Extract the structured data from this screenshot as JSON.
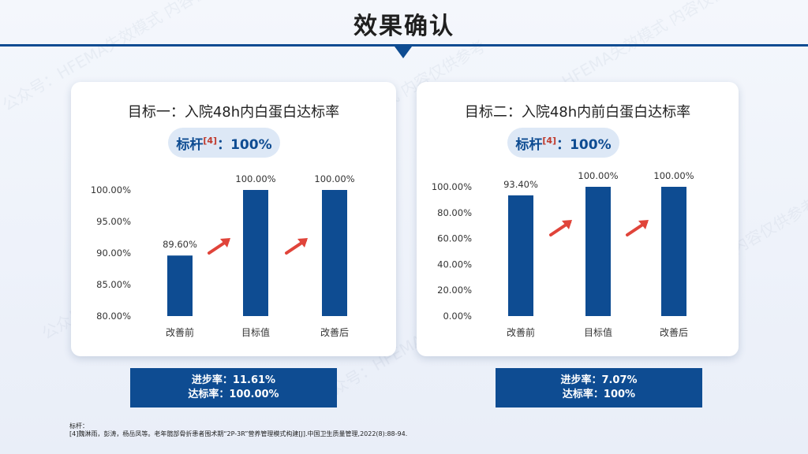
{
  "title": "效果确认",
  "watermark": "公众号：HFEMA失效模式 内容仅供参考",
  "cards": [
    {
      "title": "目标一：入院48h内白蛋白达标率",
      "benchmark_label": "标杆",
      "benchmark_ref": "[4]",
      "benchmark_value": "：100%",
      "summary": {
        "progress": "进步率：11.61%",
        "achievement": "达标率：100.00%"
      }
    },
    {
      "title": "目标二：入院48h内前白蛋白达标率",
      "benchmark_label": "标杆",
      "benchmark_ref": "[4]",
      "benchmark_value": "：100%",
      "summary": {
        "progress": "进步率：7.07%",
        "achievement": "达标率：100%"
      }
    }
  ],
  "reference": {
    "label": "标杆：",
    "text": "[4]魏淋雨，彭涛，杨岳凤等。老年髋部骨折患者围术期“2P-3R”营养管理模式构建[J].中国卫生质量管理,2022(8):88-94."
  },
  "colors": {
    "bar": "#0e4c92",
    "arrow": "#e0443a",
    "accent": "#0e4c92"
  },
  "chart_data": [
    {
      "type": "bar",
      "title": "",
      "categories": [
        "改善前",
        "目标值",
        "改善后"
      ],
      "values": [
        89.6,
        100,
        100
      ],
      "data_labels": [
        "89.60%",
        "100.00%",
        "100.00%"
      ],
      "ylim": [
        80,
        100
      ],
      "yticks": [
        "80.00%",
        "85.00%",
        "90.00%",
        "95.00%",
        "100.00%"
      ],
      "grid": false
    },
    {
      "type": "bar",
      "title": "",
      "categories": [
        "改善前",
        "目标值",
        "改善后"
      ],
      "values": [
        93.4,
        100,
        100
      ],
      "data_labels": [
        "93.40%",
        "100.00%",
        "100.00%"
      ],
      "ylim": [
        0,
        100
      ],
      "yticks": [
        "0.00%",
        "20.00%",
        "40.00%",
        "60.00%",
        "80.00%",
        "100.00%"
      ],
      "grid": false
    }
  ]
}
